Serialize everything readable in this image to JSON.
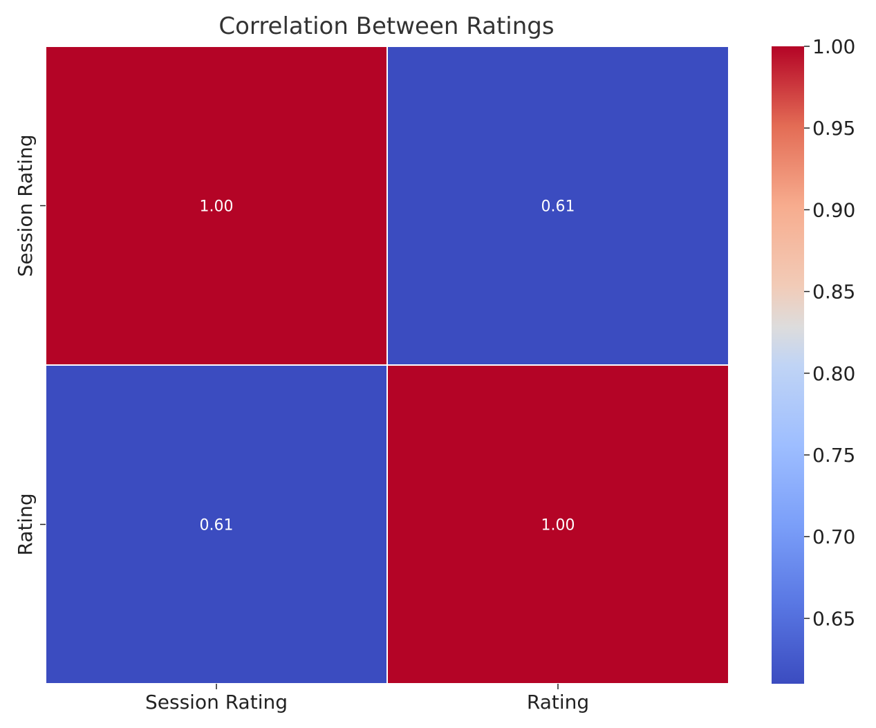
{
  "chart_data": {
    "type": "heatmap",
    "title": "Correlation Between Ratings",
    "x_categories": [
      "Session Rating",
      "Rating"
    ],
    "y_categories": [
      "Session Rating",
      "Rating"
    ],
    "values": [
      [
        1.0,
        0.61
      ],
      [
        0.61,
        1.0
      ]
    ],
    "cell_labels": [
      [
        "1.00",
        "0.61"
      ],
      [
        "0.61",
        "1.00"
      ]
    ],
    "colormap": "coolwarm",
    "colorbar": {
      "range": [
        0.61,
        1.0
      ],
      "ticks": [
        0.65,
        0.7,
        0.75,
        0.8,
        0.85,
        0.9,
        0.95,
        1.0
      ],
      "tick_labels": [
        "0.65",
        "0.70",
        "0.75",
        "0.80",
        "0.85",
        "0.90",
        "0.95",
        "1.00"
      ],
      "placement": "right"
    },
    "colors": {
      "low": "#3b4cc0",
      "mid": "#dddcdc",
      "high": "#b40426"
    }
  }
}
